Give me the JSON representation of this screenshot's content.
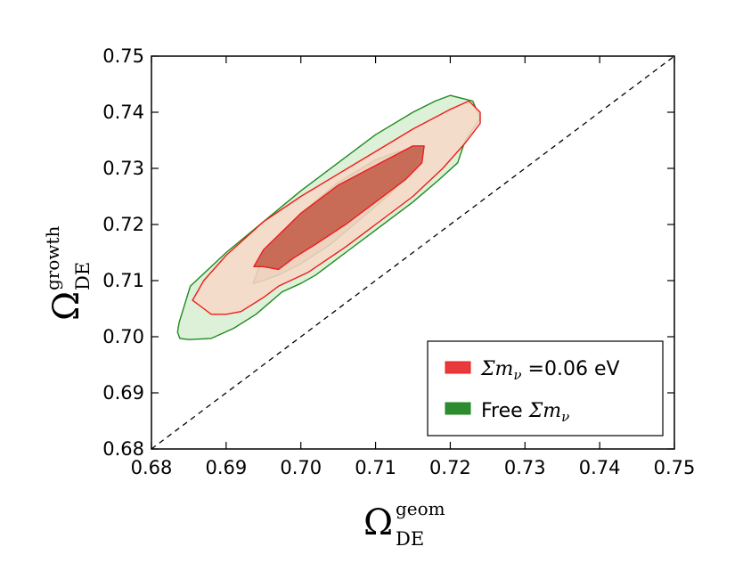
{
  "chart_data": {
    "type": "contour",
    "xlabel": {
      "symbol": "Ω",
      "sup": "geom",
      "sub": "DE"
    },
    "ylabel": {
      "symbol": "Ω",
      "sup": "growth",
      "sub": "DE"
    },
    "xlim": [
      0.68,
      0.75
    ],
    "ylim": [
      0.68,
      0.75
    ],
    "xticks": [
      "0.68",
      "0.69",
      "0.70",
      "0.71",
      "0.72",
      "0.73",
      "0.74",
      "0.75"
    ],
    "yticks": [
      "0.68",
      "0.69",
      "0.70",
      "0.71",
      "0.72",
      "0.73",
      "0.74",
      "0.75"
    ],
    "grid": false,
    "legend_position": "bottom-right",
    "reference_line": {
      "style": "dashed",
      "points": [
        [
          0.68,
          0.68
        ],
        [
          0.75,
          0.75
        ]
      ]
    },
    "series": [
      {
        "name": "Free Σmν",
        "legend_text": "Free ",
        "legend_math": "Σm",
        "legend_math_sub": "ν",
        "legend_suffix": "",
        "fill_color": "#2e8b2e",
        "line_color": "#1f8a1f",
        "contours": [
          {
            "level": "outer",
            "fill_color": "#d6efd0",
            "points": [
              [
                0.6837,
                0.7025
              ],
              [
                0.6852,
                0.709
              ],
              [
                0.69,
                0.715
              ],
              [
                0.695,
                0.7205
              ],
              [
                0.7,
                0.726
              ],
              [
                0.705,
                0.731
              ],
              [
                0.71,
                0.736
              ],
              [
                0.715,
                0.74
              ],
              [
                0.718,
                0.742
              ],
              [
                0.72,
                0.743
              ],
              [
                0.723,
                0.742
              ],
              [
                0.724,
                0.739
              ],
              [
                0.722,
                0.735
              ],
              [
                0.721,
                0.731
              ],
              [
                0.7185,
                0.728
              ],
              [
                0.715,
                0.724
              ],
              [
                0.71,
                0.719
              ],
              [
                0.706,
                0.715
              ],
              [
                0.702,
                0.711
              ],
              [
                0.7,
                0.7095
              ],
              [
                0.6975,
                0.708
              ],
              [
                0.694,
                0.704
              ],
              [
                0.691,
                0.7015
              ],
              [
                0.688,
                0.6997
              ],
              [
                0.685,
                0.6995
              ],
              [
                0.6838,
                0.6997
              ],
              [
                0.6835,
                0.7008
              ]
            ]
          },
          {
            "level": "inner",
            "fill_color": "#b09a7a",
            "points": [
              [
                0.6936,
                0.7095
              ],
              [
                0.695,
                0.7145
              ],
              [
                0.7,
                0.722
              ],
              [
                0.705,
                0.7275
              ],
              [
                0.71,
                0.7315
              ],
              [
                0.713,
                0.733
              ],
              [
                0.716,
                0.7335
              ],
              [
                0.715,
                0.73
              ],
              [
                0.712,
                0.7255
              ],
              [
                0.708,
                0.721
              ],
              [
                0.704,
                0.7165
              ],
              [
                0.7,
                0.713
              ],
              [
                0.697,
                0.711
              ],
              [
                0.695,
                0.71
              ]
            ]
          }
        ]
      },
      {
        "name": "Σmν=0.06 eV",
        "legend_text": "",
        "legend_math": "Σm",
        "legend_math_sub": "ν",
        "legend_suffix": " =0.06 eV",
        "fill_color": "#e83a3a",
        "line_color": "#ee1c1c",
        "contours": [
          {
            "level": "outer",
            "fill_color": "#f8d8c8",
            "points": [
              [
                0.6855,
                0.7065
              ],
              [
                0.687,
                0.71
              ],
              [
                0.69,
                0.7145
              ],
              [
                0.695,
                0.7205
              ],
              [
                0.7,
                0.725
              ],
              [
                0.705,
                0.729
              ],
              [
                0.71,
                0.733
              ],
              [
                0.715,
                0.737
              ],
              [
                0.72,
                0.7405
              ],
              [
                0.7225,
                0.742
              ],
              [
                0.724,
                0.74
              ],
              [
                0.724,
                0.738
              ],
              [
                0.722,
                0.7345
              ],
              [
                0.719,
                0.73
              ],
              [
                0.715,
                0.725
              ],
              [
                0.71,
                0.72
              ],
              [
                0.706,
                0.716
              ],
              [
                0.701,
                0.7115
              ],
              [
                0.697,
                0.709
              ],
              [
                0.695,
                0.707
              ],
              [
                0.692,
                0.7045
              ],
              [
                0.69,
                0.704
              ],
              [
                0.688,
                0.704
              ],
              [
                0.687,
                0.705
              ]
            ]
          },
          {
            "level": "inner",
            "fill_color": "#bb4a35",
            "points": [
              [
                0.6937,
                0.7125
              ],
              [
                0.695,
                0.7155
              ],
              [
                0.7,
                0.722
              ],
              [
                0.705,
                0.727
              ],
              [
                0.71,
                0.7305
              ],
              [
                0.715,
                0.734
              ],
              [
                0.7165,
                0.734
              ],
              [
                0.7162,
                0.731
              ],
              [
                0.714,
                0.728
              ],
              [
                0.71,
                0.724
              ],
              [
                0.706,
                0.72
              ],
              [
                0.702,
                0.7165
              ],
              [
                0.699,
                0.714
              ],
              [
                0.697,
                0.712
              ],
              [
                0.695,
                0.7125
              ]
            ]
          }
        ]
      }
    ]
  }
}
